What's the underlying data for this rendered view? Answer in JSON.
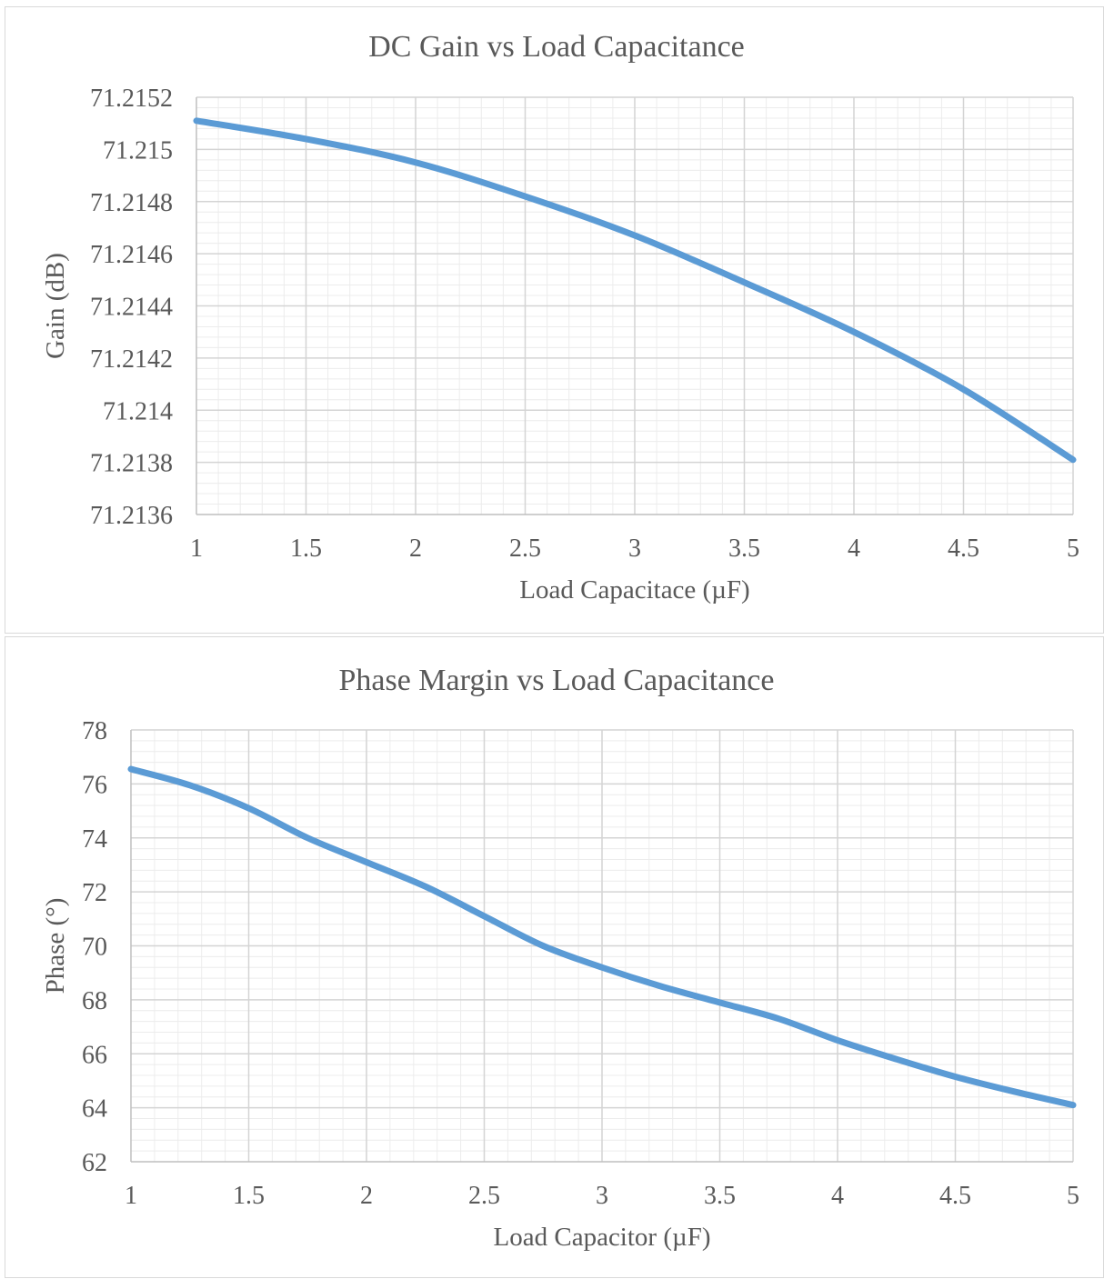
{
  "chart_data": [
    {
      "type": "line",
      "title": "DC Gain vs Load Capacitance",
      "xlabel": "Load Capacitace (µF)",
      "ylabel": "Gain (dB)",
      "xlim": [
        1,
        5
      ],
      "ylim": [
        71.2136,
        71.2152
      ],
      "x_ticks": [
        "1",
        "1.5",
        "2",
        "2.5",
        "3",
        "3.5",
        "4",
        "4.5",
        "5"
      ],
      "y_ticks": [
        "71.2136",
        "71.2138",
        "71.214",
        "71.2142",
        "71.2144",
        "71.2146",
        "71.2148",
        "71.215",
        "71.2152"
      ],
      "grid": true,
      "legend": "none",
      "series": [
        {
          "color": "#5B9BD5",
          "x": [
            1,
            1.5,
            2,
            2.5,
            3,
            3.5,
            4,
            4.5,
            5
          ],
          "values": [
            71.21511,
            71.21504,
            71.21495,
            71.21482,
            71.21467,
            71.21449,
            71.2143,
            71.21408,
            71.21381
          ]
        }
      ]
    },
    {
      "type": "line",
      "title": "Phase Margin vs Load Capacitance",
      "xlabel": "Load Capacitor (µF)",
      "ylabel": "Phase (°)",
      "xlim": [
        1,
        5
      ],
      "ylim": [
        62,
        78
      ],
      "x_ticks": [
        "1",
        "1.5",
        "2",
        "2.5",
        "3",
        "3.5",
        "4",
        "4.5",
        "5"
      ],
      "y_ticks": [
        "62",
        "64",
        "66",
        "68",
        "70",
        "72",
        "74",
        "76",
        "78"
      ],
      "grid": true,
      "legend": "none",
      "series": [
        {
          "color": "#5B9BD5",
          "x": [
            1,
            1.25,
            1.5,
            1.75,
            2,
            2.25,
            2.5,
            2.75,
            3,
            3.25,
            3.5,
            3.75,
            4,
            4.25,
            4.5,
            4.75,
            5
          ],
          "values": [
            76.55,
            75.95,
            75.1,
            74.0,
            73.1,
            72.2,
            71.1,
            70.0,
            69.2,
            68.5,
            67.9,
            67.3,
            66.5,
            65.8,
            65.15,
            64.6,
            64.1
          ]
        }
      ]
    }
  ]
}
